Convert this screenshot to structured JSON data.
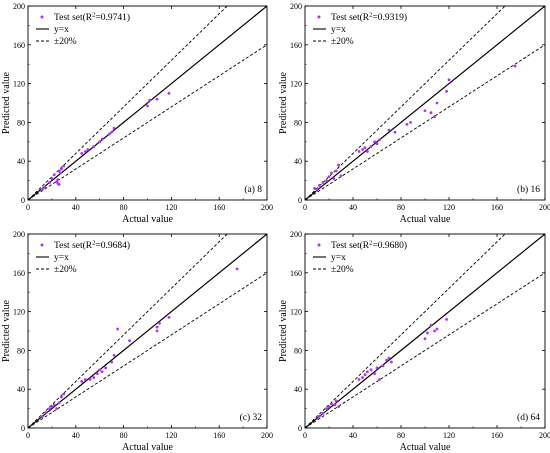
{
  "style": {
    "point_color": "#b030ff",
    "line_color": "#000000",
    "background": "#ffffff"
  },
  "chart_data": [
    {
      "type": "scatter",
      "panel_label": "(a) 8",
      "xlabel": "Actual value",
      "ylabel": "Predicted value",
      "xlim": [
        0,
        200
      ],
      "ylim": [
        0,
        200
      ],
      "x_ticks": [
        0,
        40,
        80,
        120,
        160,
        200
      ],
      "y_ticks": [
        0,
        40,
        80,
        120,
        160,
        200
      ],
      "legend": {
        "position": "top-left",
        "test_label": "Test set(R",
        "sup": "2",
        "r2": "=0.9741)",
        "identity_label": "y=x",
        "band_label": "±20%"
      },
      "points": [
        [
          12,
          11
        ],
        [
          14,
          13
        ],
        [
          18,
          18
        ],
        [
          20,
          22
        ],
        [
          22,
          26
        ],
        [
          24,
          19
        ],
        [
          25,
          21
        ],
        [
          25,
          17
        ],
        [
          26,
          16
        ],
        [
          27,
          28
        ],
        [
          28,
          32
        ],
        [
          30,
          35
        ],
        [
          26,
          30
        ],
        [
          45,
          48
        ],
        [
          48,
          50
        ],
        [
          50,
          52
        ],
        [
          55,
          55
        ],
        [
          60,
          60
        ],
        [
          62,
          63
        ],
        [
          68,
          68
        ],
        [
          70,
          70
        ],
        [
          72,
          74
        ],
        [
          100,
          97
        ],
        [
          102,
          103
        ],
        [
          108,
          104
        ],
        [
          118,
          110
        ]
      ]
    },
    {
      "type": "scatter",
      "panel_label": "(b) 16",
      "xlabel": "Actual value",
      "ylabel": "Predicted value",
      "xlim": [
        0,
        200
      ],
      "ylim": [
        0,
        200
      ],
      "x_ticks": [
        0,
        40,
        80,
        120,
        160,
        200
      ],
      "y_ticks": [
        0,
        40,
        80,
        120,
        160,
        200
      ],
      "legend": {
        "position": "top-left",
        "test_label": "Test set(R",
        "sup": "2",
        "r2": "=0.9319)",
        "identity_label": "y=x",
        "band_label": "±20%"
      },
      "points": [
        [
          8,
          12
        ],
        [
          10,
          10
        ],
        [
          12,
          15
        ],
        [
          15,
          18
        ],
        [
          18,
          20
        ],
        [
          20,
          24
        ],
        [
          22,
          28
        ],
        [
          24,
          22
        ],
        [
          26,
          30
        ],
        [
          28,
          36
        ],
        [
          30,
          25
        ],
        [
          45,
          50
        ],
        [
          48,
          52
        ],
        [
          50,
          54
        ],
        [
          52,
          50
        ],
        [
          55,
          55
        ],
        [
          58,
          60
        ],
        [
          60,
          58
        ],
        [
          62,
          62
        ],
        [
          70,
          72
        ],
        [
          75,
          70
        ],
        [
          85,
          78
        ],
        [
          88,
          80
        ],
        [
          100,
          92
        ],
        [
          105,
          90
        ],
        [
          108,
          86
        ],
        [
          110,
          100
        ],
        [
          118,
          112
        ],
        [
          120,
          124
        ],
        [
          175,
          138
        ]
      ]
    },
    {
      "type": "scatter",
      "panel_label": "(c) 32",
      "xlabel": "Actual value",
      "ylabel": "Predicted value",
      "xlim": [
        0,
        200
      ],
      "ylim": [
        0,
        200
      ],
      "x_ticks": [
        0,
        40,
        80,
        120,
        160,
        200
      ],
      "y_ticks": [
        0,
        40,
        80,
        120,
        160,
        200
      ],
      "legend": {
        "position": "top-left",
        "test_label": "Test set(R",
        "sup": "2",
        "r2": "=0.9684)",
        "identity_label": "y=x",
        "band_label": "±20%"
      },
      "points": [
        [
          12,
          12
        ],
        [
          15,
          16
        ],
        [
          18,
          20
        ],
        [
          20,
          22
        ],
        [
          22,
          24
        ],
        [
          24,
          20
        ],
        [
          26,
          26
        ],
        [
          28,
          32
        ],
        [
          30,
          35
        ],
        [
          45,
          48
        ],
        [
          48,
          50
        ],
        [
          52,
          50
        ],
        [
          55,
          52
        ],
        [
          58,
          56
        ],
        [
          60,
          60
        ],
        [
          62,
          58
        ],
        [
          65,
          62
        ],
        [
          70,
          68
        ],
        [
          72,
          75
        ],
        [
          75,
          102
        ],
        [
          85,
          90
        ],
        [
          108,
          100
        ],
        [
          108,
          104
        ],
        [
          110,
          108
        ],
        [
          118,
          114
        ],
        [
          175,
          164
        ]
      ]
    },
    {
      "type": "scatter",
      "panel_label": "(d) 64",
      "xlabel": "Actual value",
      "ylabel": "Predicted value",
      "xlim": [
        0,
        200
      ],
      "ylim": [
        0,
        200
      ],
      "x_ticks": [
        0,
        40,
        80,
        120,
        160,
        200
      ],
      "y_ticks": [
        0,
        40,
        80,
        120,
        160,
        200
      ],
      "legend": {
        "position": "top-left",
        "test_label": "Test set(R",
        "sup": "2",
        "r2": "=0.9680)",
        "identity_label": "y=x",
        "band_label": "±20%"
      },
      "points": [
        [
          12,
          12
        ],
        [
          15,
          15
        ],
        [
          18,
          20
        ],
        [
          20,
          22
        ],
        [
          22,
          25
        ],
        [
          25,
          24
        ],
        [
          26,
          28
        ],
        [
          28,
          22
        ],
        [
          45,
          50
        ],
        [
          48,
          52
        ],
        [
          50,
          55
        ],
        [
          52,
          58
        ],
        [
          55,
          60
        ],
        [
          58,
          56
        ],
        [
          60,
          62
        ],
        [
          62,
          50
        ],
        [
          65,
          64
        ],
        [
          68,
          70
        ],
        [
          70,
          72
        ],
        [
          72,
          68
        ],
        [
          100,
          92
        ],
        [
          102,
          98
        ],
        [
          105,
          106
        ],
        [
          108,
          100
        ],
        [
          110,
          102
        ],
        [
          118,
          112
        ]
      ]
    }
  ]
}
